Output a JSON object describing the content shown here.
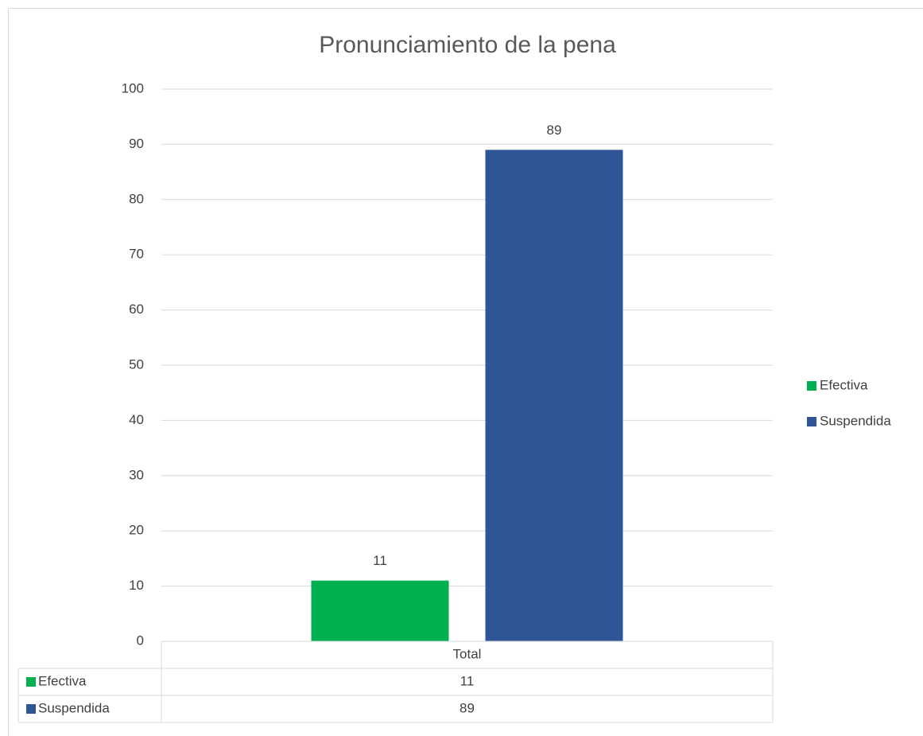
{
  "chart_data": {
    "type": "bar",
    "title": "Pronunciamiento de la pena",
    "categories": [
      "Total"
    ],
    "series": [
      {
        "name": "Efectiva",
        "color": "#00b050",
        "values": [
          11
        ]
      },
      {
        "name": "Suspendida",
        "color": "#2f5597",
        "values": [
          89
        ]
      }
    ],
    "ylim": [
      0,
      100
    ],
    "yticks": [
      0,
      10,
      20,
      30,
      40,
      50,
      60,
      70,
      80,
      90,
      100
    ],
    "grid": true,
    "legend": "right",
    "data_table": true
  }
}
